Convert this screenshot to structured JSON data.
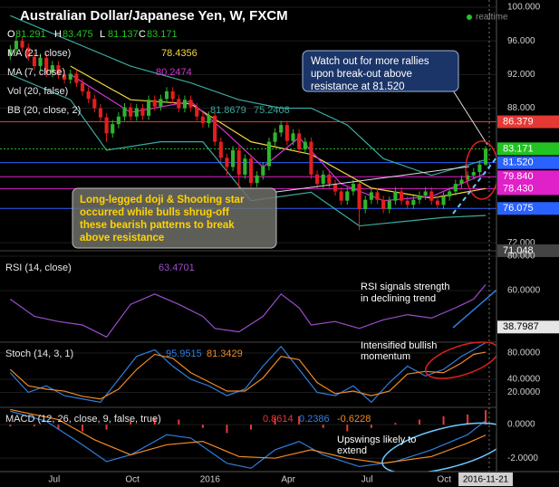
{
  "chart_data": [
    {
      "type": "candlestick",
      "title": "Australian Dollar/Japanese Yen, W, FXCM",
      "status": "realtime",
      "ohlc": [
        {
          "label": "O",
          "value": 81.291
        },
        {
          "label": "H",
          "value": 83.475
        },
        {
          "label": "L",
          "value": 81.137
        },
        {
          "label": "C",
          "value": 83.171
        }
      ],
      "xlim": [
        -0.5,
        80.8
      ],
      "ylim": [
        70.4,
        100.86
      ],
      "yticks": [
        {
          "value": 100,
          "label": "100.000"
        },
        {
          "value": 96,
          "label": "96.000"
        },
        {
          "value": 92,
          "label": "92.000"
        },
        {
          "value": 88,
          "label": "88.000"
        },
        {
          "value": 72,
          "label": "72.000"
        }
      ],
      "up_color": "#2fb52f",
      "down_color": "#e21f1f",
      "open": [
        94.2,
        95.0,
        96.0,
        95.2,
        94.1,
        93.0,
        94.0,
        92.2,
        93.1,
        92.0,
        91.4,
        92.1,
        91.0,
        90.0,
        89.1,
        88.0,
        86.9,
        85.0,
        86.1,
        87.0,
        88.1,
        87.0,
        88.0,
        87.1,
        89.0,
        88.2,
        89.1,
        90.0,
        89.1,
        88.0,
        89.0,
        88.1,
        87.0,
        86.2,
        87.1,
        84.0,
        82.1,
        81.0,
        83.0,
        80.1,
        82.0,
        79.1,
        80.0,
        81.1,
        84.0,
        85.1,
        86.0,
        84.1,
        85.0,
        83.1,
        84.0,
        80.1,
        79.0,
        80.1,
        79.0,
        78.1,
        77.0,
        78.1,
        79.0,
        76.0,
        77.1,
        78.0,
        77.1,
        76.0,
        77.0,
        78.1,
        77.0,
        76.5,
        77.1,
        77.6,
        78.1,
        77.0,
        76.5,
        77.5,
        78.1,
        79.0,
        79.5,
        80.0,
        80.4,
        81.291
      ],
      "high": [
        95.5,
        96.5,
        96.5,
        95.7,
        94.6,
        94.5,
        94.5,
        93.6,
        93.6,
        92.5,
        92.6,
        92.6,
        91.5,
        90.5,
        89.6,
        88.5,
        87.4,
        86.6,
        87.5,
        88.6,
        88.6,
        88.5,
        88.5,
        89.5,
        89.5,
        89.6,
        90.5,
        90.5,
        89.6,
        89.5,
        89.5,
        88.6,
        87.5,
        87.6,
        87.6,
        84.5,
        82.6,
        83.5,
        83.5,
        82.5,
        82.5,
        80.5,
        81.6,
        84.5,
        85.6,
        86.5,
        86.5,
        85.5,
        85.5,
        84.5,
        84.5,
        80.6,
        80.6,
        80.6,
        79.5,
        78.6,
        78.6,
        79.5,
        79.5,
        77.6,
        78.5,
        78.5,
        77.6,
        77.5,
        78.6,
        78.6,
        77.5,
        77.6,
        78.1,
        78.6,
        78.6,
        77.5,
        78.0,
        78.6,
        79.5,
        80.0,
        80.5,
        80.9,
        81.8,
        83.475
      ],
      "low": [
        93.7,
        94.5,
        94.7,
        93.6,
        92.5,
        92.5,
        91.7,
        91.7,
        91.5,
        90.9,
        90.9,
        90.5,
        89.5,
        88.6,
        87.5,
        86.4,
        84.0,
        84.5,
        85.6,
        86.5,
        86.5,
        86.5,
        86.6,
        86.6,
        87.7,
        87.7,
        88.6,
        88.6,
        87.5,
        87.5,
        87.6,
        86.5,
        85.7,
        85.7,
        83.5,
        81.6,
        80.0,
        80.5,
        78.5,
        79.6,
        78.6,
        78.6,
        79.5,
        80.6,
        83.5,
        84.6,
        83.6,
        83.6,
        82.6,
        82.6,
        79.6,
        78.5,
        78.5,
        78.5,
        77.6,
        76.5,
        76.5,
        77.6,
        73.5,
        75.5,
        76.6,
        76.6,
        75.5,
        75.5,
        76.5,
        76.5,
        76.0,
        76.0,
        76.6,
        77.1,
        76.5,
        76.0,
        76.0,
        77.0,
        77.6,
        78.5,
        79.0,
        79.5,
        79.9,
        81.137
      ],
      "close": [
        95.0,
        96.0,
        95.2,
        94.1,
        93.0,
        94.0,
        92.2,
        93.1,
        92.0,
        91.4,
        92.1,
        91.0,
        90.0,
        89.1,
        88.0,
        86.9,
        85.0,
        86.1,
        87.0,
        88.1,
        87.0,
        88.0,
        87.1,
        89.0,
        88.2,
        89.1,
        90.0,
        89.1,
        88.0,
        89.0,
        88.1,
        87.0,
        86.2,
        87.1,
        84.0,
        82.1,
        81.0,
        83.0,
        80.1,
        82.0,
        79.1,
        80.0,
        81.1,
        84.0,
        85.1,
        86.0,
        84.1,
        85.0,
        83.1,
        84.0,
        80.1,
        79.0,
        80.1,
        79.0,
        78.1,
        77.0,
        78.1,
        79.0,
        76.0,
        77.1,
        78.0,
        77.1,
        76.0,
        77.0,
        78.1,
        77.0,
        76.5,
        77.1,
        77.6,
        78.1,
        77.0,
        76.5,
        77.5,
        78.1,
        79.0,
        79.5,
        80.0,
        80.4,
        81.3,
        83.171
      ],
      "indicators": [
        {
          "name": "MA (21, close)",
          "series": [
            {
              "color": "#f5d742",
              "x": [
                10,
                20,
                30,
                40,
                50,
                60,
                70,
                79
              ],
              "values": [
                93,
                89,
                88.5,
                84,
                82.5,
                78.5,
                77.3,
                78.4356
              ]
            }
          ]
        },
        {
          "name": "MA (7, close)",
          "series": [
            {
              "color": "#d633d6",
              "x": [
                10,
                20,
                30,
                36,
                42,
                48,
                55,
                62,
                70,
                79
              ],
              "values": [
                92,
                87.5,
                88.8,
                85,
                81,
                84.5,
                79,
                77,
                77.5,
                80.2474
              ]
            }
          ]
        },
        {
          "name": "Vol (20, false)"
        },
        {
          "name": "BB (20, close, 2)",
          "series": [
            {
              "color": "#3aa8a0",
              "x": [
                0,
                10,
                20,
                30,
                38,
                45,
                50,
                56,
                62,
                70,
                79
              ],
              "values": [
                99,
                96,
                93,
                91,
                89,
                88,
                88,
                86,
                82,
                80,
                81.8679
              ]
            },
            {
              "color": "#3aa8a0",
              "x": [
                0,
                10,
                16,
                25,
                32,
                40,
                50,
                58,
                65,
                72,
                79
              ],
              "values": [
                92,
                89,
                83,
                84,
                84,
                77,
                78,
                74,
                74.5,
                75,
                75.2408
              ]
            }
          ]
        }
      ],
      "price_lines": [
        {
          "value": 86.379,
          "label": "86.379",
          "color": "#e53935"
        },
        {
          "value": 83.171,
          "label": "83.171",
          "color": "#22c322"
        },
        {
          "value": 81.52,
          "label": "81.520",
          "color": "#2962ff"
        },
        {
          "value": 79.84,
          "label": "79.840",
          "color": "#e020c8"
        },
        {
          "value": 78.43,
          "label": "78.430",
          "color": "#e020c8"
        },
        {
          "value": 76.075,
          "label": "76.075",
          "color": "#2962ff"
        },
        {
          "value": 71.048,
          "label": "71.048",
          "color": "#444444"
        }
      ],
      "annotations": [
        [
          "Watch out for more rallies",
          "upon break-out above",
          "resistance at 81.520"
        ],
        [
          "Long-legged doji & Shooting star",
          "occurred while bulls shrug-off",
          "these bearish patterns to break",
          "above resistance"
        ]
      ]
    },
    {
      "type": "line",
      "title": "RSI (14, close)",
      "xlim": [
        -0.5,
        80.8
      ],
      "ylim": [
        30,
        80
      ],
      "yticks": [
        {
          "value": 80,
          "label": "80.000"
        },
        {
          "value": 60,
          "label": "60.0000"
        }
      ],
      "marker": 38.7987,
      "series": [
        {
          "color": "#9c4dcc",
          "x": [
            0,
            4,
            8,
            12,
            16,
            20,
            24,
            28,
            32,
            34,
            38,
            42,
            45,
            48,
            50,
            54,
            58,
            62,
            66,
            70,
            74,
            77,
            79
          ],
          "values": [
            55,
            45,
            42,
            40,
            33,
            52,
            58,
            52,
            45,
            38,
            36,
            45,
            58,
            50,
            40,
            42,
            38,
            43,
            46,
            44,
            50,
            55,
            63.4701
          ]
        }
      ],
      "annotations": [
        [
          "RSI signals strength",
          "in declining trend"
        ]
      ]
    },
    {
      "type": "line",
      "title": "Stoch (14, 3, 1)",
      "xlim": [
        -0.5,
        80.8
      ],
      "ylim": [
        -2.8,
        96.6
      ],
      "yticks": [
        {
          "value": 80,
          "label": "80.0000"
        },
        {
          "value": 40,
          "label": "40.0000"
        },
        {
          "value": 20,
          "label": "20.0000"
        }
      ],
      "series": [
        {
          "color": "#2f7fe0",
          "x": [
            0,
            3,
            6,
            9,
            12,
            15,
            18,
            21,
            24,
            27,
            30,
            33,
            36,
            39,
            42,
            45,
            48,
            51,
            54,
            57,
            60,
            63,
            66,
            69,
            72,
            75,
            77,
            79
          ],
          "values": [
            50,
            20,
            30,
            15,
            10,
            5,
            40,
            75,
            85,
            60,
            40,
            30,
            15,
            25,
            60,
            90,
            55,
            20,
            15,
            30,
            5,
            35,
            60,
            45,
            55,
            75,
            85,
            95.9515
          ]
        },
        {
          "color": "#f08a24",
          "x": [
            0,
            3,
            6,
            9,
            12,
            15,
            18,
            21,
            24,
            27,
            30,
            33,
            36,
            39,
            42,
            45,
            48,
            51,
            54,
            57,
            60,
            63,
            66,
            69,
            72,
            75,
            77,
            79
          ],
          "values": [
            55,
            30,
            25,
            22,
            14,
            10,
            25,
            55,
            78,
            72,
            50,
            36,
            22,
            22,
            42,
            75,
            70,
            35,
            18,
            22,
            15,
            22,
            48,
            52,
            50,
            65,
            78,
            81.3429
          ]
        }
      ],
      "annotations": [
        [
          "Intensified bullish",
          "momentum"
        ]
      ]
    },
    {
      "type": "line",
      "title": "MACD (12, 26, close, 9, false, true)",
      "xlim": [
        -0.5,
        80.8
      ],
      "ylim": [
        -2.8,
        1.03
      ],
      "yticks": [
        {
          "value": 0,
          "label": "0.0000"
        },
        {
          "value": -2,
          "label": "-2.0000"
        }
      ],
      "histogram": {
        "color": "#e53935",
        "x": [
          0,
          4,
          8,
          12,
          16,
          20,
          24,
          28,
          32,
          36,
          40,
          44,
          48,
          52,
          56,
          60,
          64,
          68,
          72,
          76,
          79
        ],
        "values": [
          -0.1,
          -0.1,
          -0.3,
          -0.4,
          -0.3,
          0.2,
          0.4,
          0.3,
          -0.2,
          -0.5,
          -0.3,
          0.4,
          0.5,
          -0.2,
          -0.4,
          -0.2,
          0.1,
          0.3,
          0.5,
          0.6,
          0.8614
        ]
      },
      "series": [
        {
          "color": "#2f7fe0",
          "x": [
            0,
            6,
            12,
            16,
            20,
            26,
            30,
            36,
            40,
            44,
            48,
            52,
            58,
            64,
            70,
            76,
            79
          ],
          "values": [
            0.8,
            0.2,
            -1.2,
            -2.2,
            -1.8,
            -0.6,
            -0.8,
            -2.3,
            -2.6,
            -1.5,
            -1.0,
            -1.8,
            -2.5,
            -2.2,
            -1.5,
            -0.6,
            0.2386
          ]
        },
        {
          "color": "#f08a24",
          "x": [
            0,
            8,
            14,
            20,
            26,
            32,
            38,
            44,
            50,
            56,
            62,
            70,
            76,
            79
          ],
          "values": [
            0.9,
            0.3,
            -0.9,
            -1.8,
            -1.2,
            -1.0,
            -1.9,
            -2.0,
            -1.5,
            -2.0,
            -2.3,
            -1.9,
            -1.1,
            -0.6228
          ]
        }
      ],
      "xticks": [
        {
          "value": 7.3,
          "label": "Jul"
        },
        {
          "value": 20.3,
          "label": "Oct"
        },
        {
          "value": 33.2,
          "label": "2016"
        },
        {
          "value": 46.2,
          "label": "Apr"
        },
        {
          "value": 59.3,
          "label": "Jul"
        },
        {
          "value": 72.1,
          "label": "Oct"
        },
        {
          "value": 79,
          "label": "2016-11-21"
        }
      ],
      "annotations": [
        [
          "Upswings likely to",
          "extend"
        ]
      ]
    }
  ]
}
